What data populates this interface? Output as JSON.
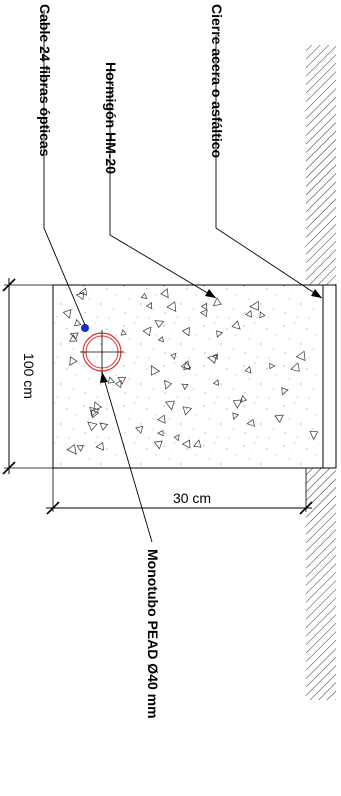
{
  "labels": {
    "surface_closure": "Cierre acera o asfáltico",
    "concrete": "Hormigón HM-20",
    "fiber_cable": "Cable 24 fibras ópticas",
    "duct": "Monotubo PEAD Ø40 mm"
  },
  "dimensions": {
    "width": "30 cm",
    "depth": "100 cm"
  },
  "colors": {
    "duct_outline": "#e0342c",
    "fiber_cable": "#1030d0",
    "lines": "#000000"
  }
}
